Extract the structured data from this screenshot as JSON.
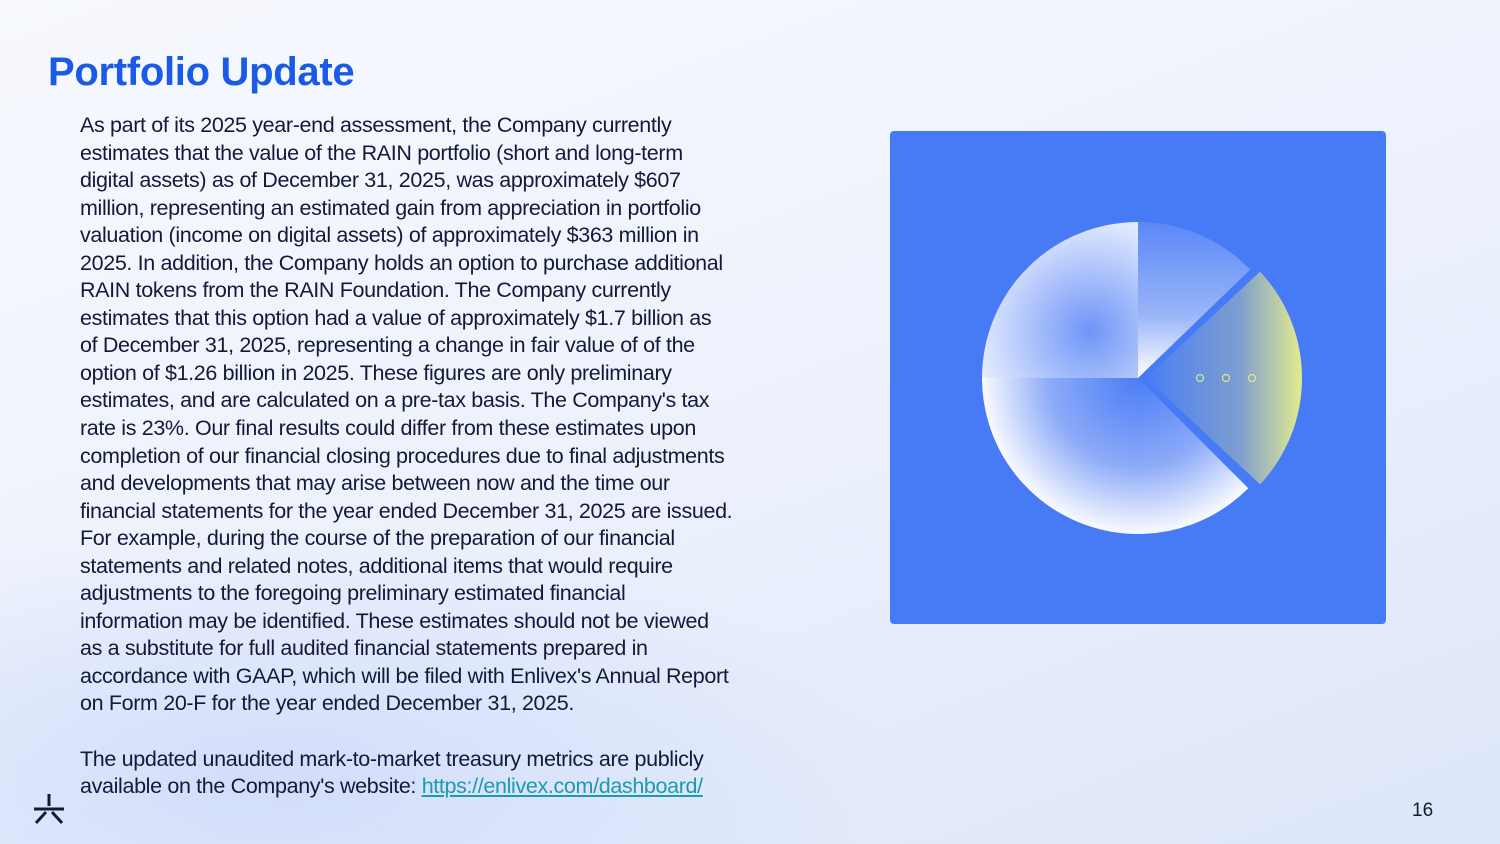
{
  "title": "Portfolio Update",
  "paragraph1_lines": [
    "As part of its 2025 year-end assessment, the Company currently",
    "estimates that the value of the RAIN portfolio (short and long-term",
    "digital assets) as of December 31, 2025, was approximately $607",
    "million, representing an estimated gain from appreciation in portfolio",
    "valuation (income on digital assets) of approximately $363 million in",
    "2025. In addition, the Company holds an option to purchase additional",
    "RAIN tokens from the RAIN Foundation. The Company currently",
    "estimates that this option had a value of approximately $1.7 billion as",
    "of December 31, 2025, representing a change in fair value of of the",
    "option of $1.26 billion in 2025. These figures are only preliminary",
    "estimates, and are calculated on a pre-tax basis. The Company's tax",
    "rate is 23%. Our final results could differ from these estimates upon",
    "completion of our financial closing procedures due to final adjustments",
    "and developments that may arise between now and the time our",
    "financial statements for the year ended December 31, 2025 are issued.",
    "For example, during the course of the preparation of our financial",
    "statements and related notes, additional items that would require",
    "adjustments to the foregoing  preliminary estimated financial",
    "information may be identified. These estimates should not be viewed",
    "as a substitute for full audited financial statements prepared in",
    "accordance with GAAP, which will be filed with Enlivex's Annual Report",
    "on Form 20-F for the year ended December 31, 2025."
  ],
  "paragraph2_line1": "The updated unaudited mark-to-market treasury metrics are publicly",
  "paragraph2_line2": "available on the Company's website: ",
  "dashboard_link": "https://enlivex.com/dashboard/",
  "page_number": "16",
  "colors": {
    "title": "#1a5ae8",
    "panel": "#477bf6",
    "link": "#1a9bb0",
    "accent": "#e4ec8c"
  },
  "icons": {
    "logo": "asterisk-logo-icon",
    "image": "pie-chart-illustration"
  }
}
